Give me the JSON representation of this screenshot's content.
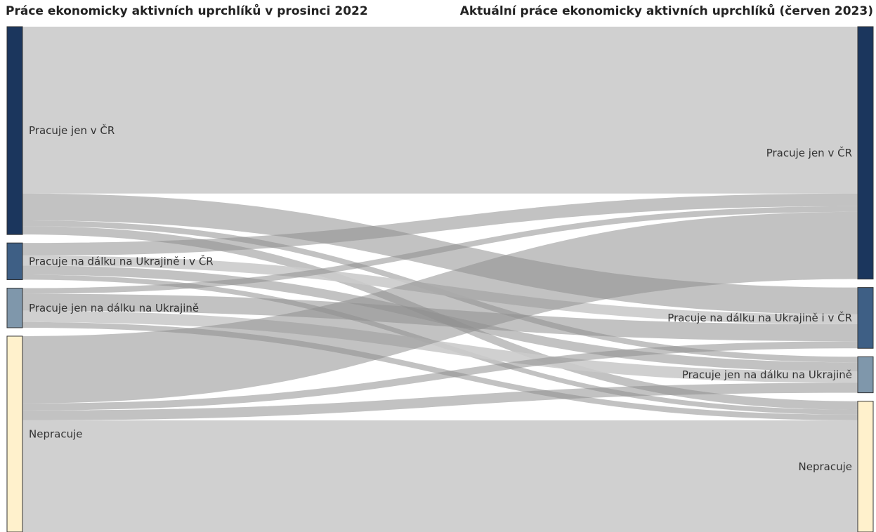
{
  "titles": {
    "left": "Práce ekonomicky aktivních uprchlíků v prosinci 2022",
    "right": "Aktuální práce ekonomicky aktivních uprchlíků (červen 2023)"
  },
  "colors": {
    "Pracuje jen v ČR": "#1b365d",
    "Pracuje na dálku na Ukrajině i v ČR": "#3e5f85",
    "Pracuje jen na dálku na Ukrajině": "#7f97ab",
    "Nepracuje": "#fff1cc"
  },
  "nodes": {
    "left": [
      "Pracuje jen v ČR",
      "Pracuje na dálku na Ukrajině i v ČR",
      "Pracuje jen na dálku na Ukrajině",
      "Nepracuje"
    ],
    "right": [
      "Pracuje jen v ČR",
      "Pracuje na dálku na Ukrajině i v ČR",
      "Pracuje jen na dálku na Ukrajině",
      "Nepracuje"
    ]
  },
  "chart_data": {
    "type": "sankey",
    "links": [
      {
        "source": "Pracuje jen v ČR",
        "target": "Pracuje jen v ČR",
        "value": 236
      },
      {
        "source": "Pracuje jen v ČR",
        "target": "Pracuje na dálku na Ukrajině i v ČR",
        "value": 38
      },
      {
        "source": "Pracuje jen v ČR",
        "target": "Pracuje jen na dálku na Ukrajině",
        "value": 8
      },
      {
        "source": "Pracuje jen v ČR",
        "target": "Nepracuje",
        "value": 12
      },
      {
        "source": "Pracuje na dálku na Ukrajině i v ČR",
        "target": "Pracuje jen v ČR",
        "value": 18
      },
      {
        "source": "Pracuje na dálku na Ukrajině i v ČR",
        "target": "Pracuje na dálku na Ukrajině i v ČR",
        "value": 14
      },
      {
        "source": "Pracuje na dálku na Ukrajině i v ČR",
        "target": "Pracuje jen na dálku na Ukrajině",
        "value": 13
      },
      {
        "source": "Pracuje na dálku na Ukrajině i v ČR",
        "target": "Nepracuje",
        "value": 7
      },
      {
        "source": "Pracuje jen na dálku na Ukrajině",
        "target": "Pracuje jen v ČR",
        "value": 8
      },
      {
        "source": "Pracuje jen na dálku na Ukrajině",
        "target": "Pracuje na dálku na Ukrajině i v ČR",
        "value": 24
      },
      {
        "source": "Pracuje jen na dálku na Ukrajině",
        "target": "Pracuje jen na dálku na Ukrajině",
        "value": 16
      },
      {
        "source": "Pracuje jen na dálku na Ukrajině",
        "target": "Nepracuje",
        "value": 8
      },
      {
        "source": "Nepracuje",
        "target": "Pracuje jen v ČR",
        "value": 95
      },
      {
        "source": "Nepracuje",
        "target": "Pracuje na dálku na Ukrajině i v ČR",
        "value": 10
      },
      {
        "source": "Nepracuje",
        "target": "Pracuje jen na dálku na Ukrajině",
        "value": 14
      },
      {
        "source": "Nepracuje",
        "target": "Nepracuje",
        "value": 158
      }
    ]
  }
}
